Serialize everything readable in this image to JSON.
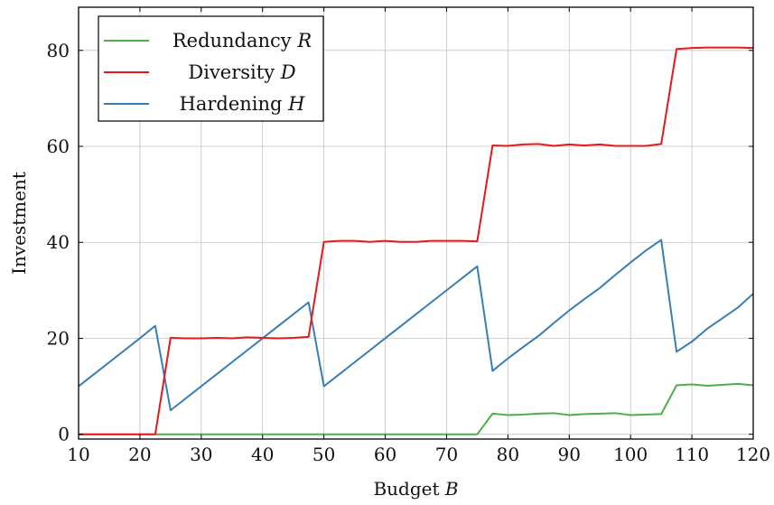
{
  "chart_data": {
    "type": "line",
    "xlabel": "Budget",
    "xlabel_var": "B",
    "ylabel": "Investment",
    "xlim": [
      10,
      120
    ],
    "ylim": [
      -1,
      89
    ],
    "xticks": [
      10,
      20,
      30,
      40,
      50,
      60,
      70,
      80,
      90,
      100,
      110,
      120
    ],
    "yticks": [
      0,
      20,
      40,
      60,
      80
    ],
    "grid": true,
    "legend": "top-left",
    "series": [
      {
        "name": "Redundancy",
        "var": "R",
        "color": "#4daf4a",
        "x": [
          10,
          12.5,
          15,
          17.5,
          20,
          22.5,
          25,
          27.5,
          30,
          32.5,
          35,
          37.5,
          40,
          42.5,
          45,
          47.5,
          50,
          52.5,
          55,
          57.5,
          60,
          62.5,
          65,
          67.5,
          70,
          72.5,
          75,
          77.5,
          80,
          82.5,
          85,
          87.5,
          90,
          92.5,
          95,
          97.5,
          100,
          102.5,
          105,
          107.5,
          110,
          112.5,
          115,
          117.5,
          120
        ],
        "values": [
          0,
          0,
          0,
          0,
          0,
          0,
          0,
          0,
          0,
          0,
          0,
          0,
          0,
          0,
          0,
          0,
          0,
          0,
          0,
          0,
          0,
          0,
          0,
          0,
          0,
          0,
          0,
          4.3,
          4.0,
          4.1,
          4.3,
          4.4,
          4.0,
          4.2,
          4.3,
          4.4,
          4.0,
          4.1,
          4.2,
          10.2,
          10.4,
          10.1,
          10.3,
          10.5,
          10.2
        ]
      },
      {
        "name": "Diversity",
        "var": "D",
        "color": "#e41a1c",
        "x": [
          10,
          12.5,
          15,
          17.5,
          20,
          22.5,
          25,
          27.5,
          30,
          32.5,
          35,
          37.5,
          40,
          42.5,
          45,
          47.5,
          50,
          52.5,
          55,
          57.5,
          60,
          62.5,
          65,
          67.5,
          70,
          72.5,
          75,
          77.5,
          80,
          82.5,
          85,
          87.5,
          90,
          92.5,
          95,
          97.5,
          100,
          102.5,
          105,
          107.5,
          110,
          112.5,
          115,
          117.5,
          120
        ],
        "values": [
          0,
          0,
          0,
          0,
          0,
          0,
          20.1,
          20.0,
          20.0,
          20.1,
          20.0,
          20.2,
          20.1,
          20.0,
          20.1,
          20.3,
          40.1,
          40.3,
          40.3,
          40.1,
          40.3,
          40.1,
          40.1,
          40.3,
          40.3,
          40.3,
          40.2,
          60.2,
          60.1,
          60.4,
          60.5,
          60.1,
          60.4,
          60.2,
          60.4,
          60.1,
          60.1,
          60.1,
          60.5,
          80.3,
          80.5,
          80.6,
          80.6,
          80.6,
          80.5
        ]
      },
      {
        "name": "Hardening",
        "var": "H",
        "color": "#377eb8",
        "x": [
          10,
          12.5,
          15,
          17.5,
          20,
          22.5,
          25,
          27.5,
          30,
          32.5,
          35,
          37.5,
          40,
          42.5,
          45,
          47.5,
          50,
          52.5,
          55,
          57.5,
          60,
          62.5,
          65,
          67.5,
          70,
          72.5,
          75,
          77.5,
          80,
          82.5,
          85,
          87.5,
          90,
          92.5,
          95,
          97.5,
          100,
          102.5,
          105,
          107.5,
          110,
          112.5,
          115,
          117.5,
          120
        ],
        "values": [
          10.0,
          12.5,
          15.0,
          17.5,
          20.0,
          22.6,
          5.0,
          7.5,
          10.0,
          12.5,
          15.0,
          17.5,
          20.0,
          22.5,
          25.0,
          27.5,
          10.0,
          12.5,
          15.0,
          17.5,
          20.0,
          22.5,
          25.0,
          27.5,
          30.0,
          32.5,
          35.0,
          13.2,
          15.8,
          18.2,
          20.5,
          23.2,
          25.8,
          28.2,
          30.5,
          33.2,
          35.8,
          38.3,
          40.5,
          17.2,
          19.3,
          22.0,
          24.2,
          26.4,
          29.3
        ]
      }
    ]
  }
}
